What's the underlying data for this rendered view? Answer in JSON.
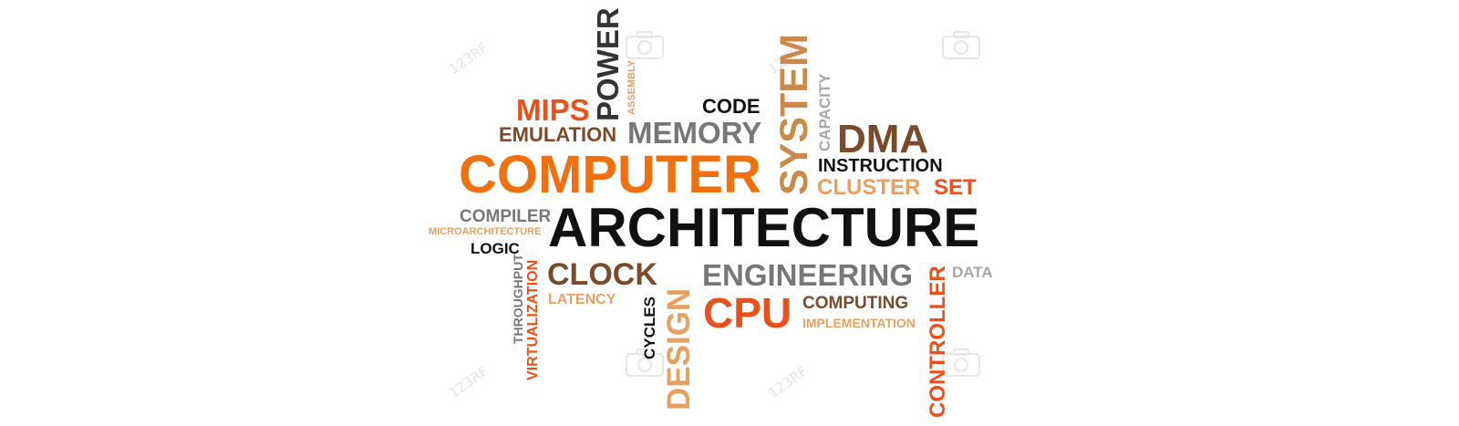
{
  "words": {
    "architecture": "ARCHITECTURE",
    "computer": "COMPUTER",
    "mips": "MIPS",
    "power": "POWER",
    "assembly": "ASSEMBLY",
    "code": "CODE",
    "memory": "MEMORY",
    "emulation": "EMULATION",
    "system": "SYSTEM",
    "capacity": "CAPACITY",
    "dma": "DMA",
    "instruction": "INSTRUCTION",
    "cluster": "CLUSTER",
    "set": "SET",
    "compiler": "COMPILER",
    "microarchitecture": "MICROARCHITECTURE",
    "logic": "LOGIC",
    "throughput": "THROUGHPUT",
    "virtualization": "VIRTUALIZATION",
    "clock": "CLOCK",
    "latency": "LATENCY",
    "cycles": "CYCLES",
    "design": "DESIGN",
    "engineering": "ENGINEERING",
    "cpu": "CPU",
    "computing": "COMPUTING",
    "implementation": "IMPLEMENTATION",
    "controller": "CONTROLLER",
    "data": "DATA"
  },
  "watermark": {
    "text": "123RF"
  },
  "colors": {
    "black": "#111111",
    "orange": "#f07010",
    "orange_red": "#e8501c",
    "brown": "#7a4a2a",
    "gray": "#777777",
    "light_gray": "#a8a8a8",
    "tan": "#e8a060"
  }
}
